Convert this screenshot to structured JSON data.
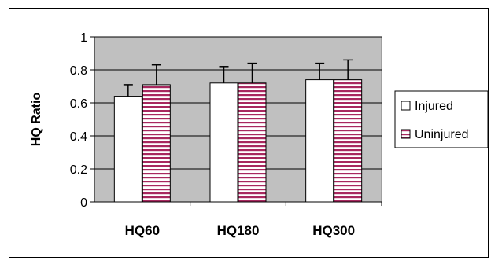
{
  "chart_data": {
    "type": "bar",
    "title": "",
    "xlabel": "",
    "ylabel": "HQ Ratio",
    "ylim": [
      0,
      1
    ],
    "yticks": [
      0,
      0.2,
      0.4,
      0.6,
      0.8,
      1
    ],
    "yticklabels": [
      "0",
      "0.2",
      "0.4",
      "0.6",
      "0.8",
      "1"
    ],
    "categories": [
      "HQ60",
      "HQ180",
      "HQ300"
    ],
    "grid": true,
    "legend_position": "right",
    "plot_background": "#c0c0c0",
    "series": [
      {
        "name": "Injured",
        "values": [
          0.64,
          0.72,
          0.74
        ],
        "error": [
          0.07,
          0.1,
          0.1
        ],
        "fill": "#ffffff",
        "pattern": "solid"
      },
      {
        "name": "Uninjured",
        "values": [
          0.71,
          0.72,
          0.74
        ],
        "error": [
          0.12,
          0.12,
          0.12
        ],
        "fill": "#ffffff",
        "pattern": "horizontal-stripes",
        "stripe_color": "#a8285f"
      }
    ]
  }
}
